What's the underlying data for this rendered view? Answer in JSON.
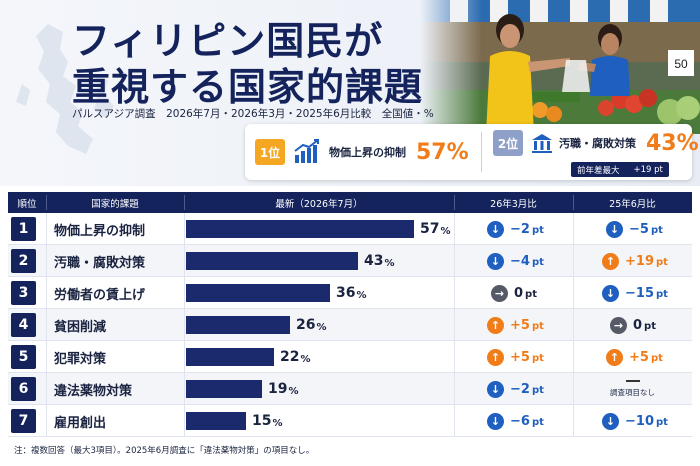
{
  "header": {
    "title_line1": "フィリピン国民が",
    "title_line2": "重視する国家的課題",
    "subtitle": "パルスアジア調査　2026年7月・2026年3月・2025年6月比較　全国値・%"
  },
  "highlights": [
    {
      "badge": "1位",
      "label": "物価上昇の抑制",
      "value": "57%",
      "badge_color": "#f5a623",
      "icon": "rising-chart-icon"
    },
    {
      "badge": "2位",
      "label": "汚職・腐敗対策",
      "value": "43%",
      "badge_color": "#8fa0c8",
      "icon": "government-building-icon",
      "sub_label": "前年差最大",
      "sub_value": "+19 pt"
    }
  ],
  "colors": {
    "navy": "#14235c",
    "bar": "#1a2a6c",
    "down": "#1f5fbf",
    "up": "#f07c1a",
    "flat": "#555a66",
    "accent": "#f07c1a"
  },
  "table": {
    "headers": [
      "順位",
      "国家的課題",
      "最新（2026年7月）",
      "26年3月比",
      "25年6月比"
    ],
    "not_surveyed": "調査項目なし",
    "unit": "pt"
  },
  "chart_data": {
    "type": "bar",
    "orientation": "horizontal",
    "title": "フィリピン国民が重視する国家的課題",
    "categories": [
      "物価上昇の抑制",
      "汚職・腐敗対策",
      "労働者の賃上げ",
      "貧困削減",
      "犯罪対策",
      "違法薬物対策",
      "雇用創出"
    ],
    "series": [
      {
        "name": "最新（2026年7月）",
        "values": [
          57,
          43,
          36,
          26,
          22,
          19,
          15
        ]
      }
    ],
    "changes_vs_2026_03": [
      -2,
      -4,
      0,
      5,
      5,
      -2,
      -6
    ],
    "changes_vs_2025_06": [
      -5,
      19,
      -15,
      0,
      5,
      null,
      -10
    ],
    "xlim": [
      0,
      100
    ],
    "unit": "%"
  },
  "footnote": "注：複数回答（最大3項目）。2025年6月調査に「違法薬物対策」の項目なし。"
}
